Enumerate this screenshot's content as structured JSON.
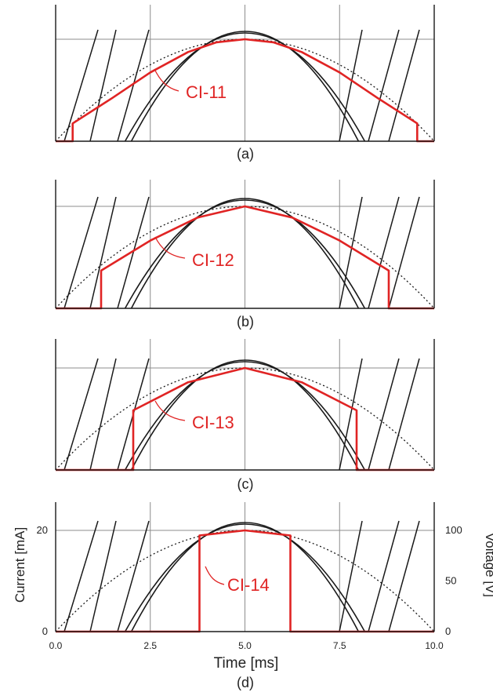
{
  "figure": {
    "panels": [
      {
        "caption": "(a)",
        "pulse_label": "CI-11"
      },
      {
        "caption": "(b)",
        "pulse_label": "CI-12"
      },
      {
        "caption": "(c)",
        "pulse_label": "CI-13"
      },
      {
        "caption": "(d)",
        "pulse_label": "CI-14"
      }
    ],
    "colors": {
      "pulse": "#e02424",
      "curves": "#1a1a1a",
      "grid": "#8c8c8c",
      "axis": "#1a1a1a"
    }
  },
  "chart_data": [
    {
      "type": "line",
      "caption": "(a)",
      "xlim": [
        0,
        10
      ],
      "ylim": [
        0,
        20
      ],
      "grid": true,
      "series": [
        {
          "name": "CI-11",
          "x": [
            0,
            0.45,
            0.45,
            1.5,
            2.5,
            3.5,
            4.25,
            5,
            5.75,
            6.5,
            7.5,
            8.5,
            9.55,
            9.55,
            10
          ],
          "y": [
            0,
            0,
            3.5,
            8.5,
            13.5,
            17.5,
            19.4,
            20,
            19.4,
            17.5,
            13.5,
            8.5,
            3.5,
            0,
            0
          ]
        }
      ]
    },
    {
      "type": "line",
      "caption": "(b)",
      "xlim": [
        0,
        10
      ],
      "ylim": [
        0,
        20
      ],
      "grid": true,
      "series": [
        {
          "name": "CI-12",
          "x": [
            0,
            1.2,
            1.2,
            2.5,
            3.75,
            5,
            6.25,
            7.5,
            8.8,
            8.8,
            10
          ],
          "y": [
            0,
            0,
            7.4,
            13.3,
            17.8,
            20,
            17.8,
            13.3,
            7.4,
            0,
            0
          ]
        }
      ]
    },
    {
      "type": "line",
      "caption": "(c)",
      "xlim": [
        0,
        10
      ],
      "ylim": [
        0,
        20
      ],
      "grid": true,
      "series": [
        {
          "name": "CI-13",
          "x": [
            0,
            2.05,
            2.05,
            3.5,
            5,
            6.5,
            7.95,
            7.95,
            10
          ],
          "y": [
            0,
            0,
            11.7,
            17.2,
            20,
            17.2,
            11.7,
            0,
            0
          ]
        }
      ]
    },
    {
      "type": "line",
      "caption": "(d)",
      "xlabel": "Time [ms]",
      "ylabel": "Current [mA]",
      "y2label": "Voltage [V]",
      "xlim": [
        0,
        10
      ],
      "ylim": [
        0,
        20
      ],
      "y2lim": [
        0,
        100
      ],
      "grid": true,
      "xticks": [
        "0.0",
        "2.5",
        "5.0",
        "7.5",
        "10.0"
      ],
      "yticks": [
        "0",
        "20"
      ],
      "y2ticks": [
        "0",
        "50",
        "100"
      ],
      "series": [
        {
          "name": "CI-14",
          "x": [
            0,
            3.8,
            3.8,
            5,
            6.2,
            6.2,
            10
          ],
          "y": [
            0,
            0,
            19,
            20,
            19,
            0,
            0
          ]
        }
      ]
    }
  ]
}
